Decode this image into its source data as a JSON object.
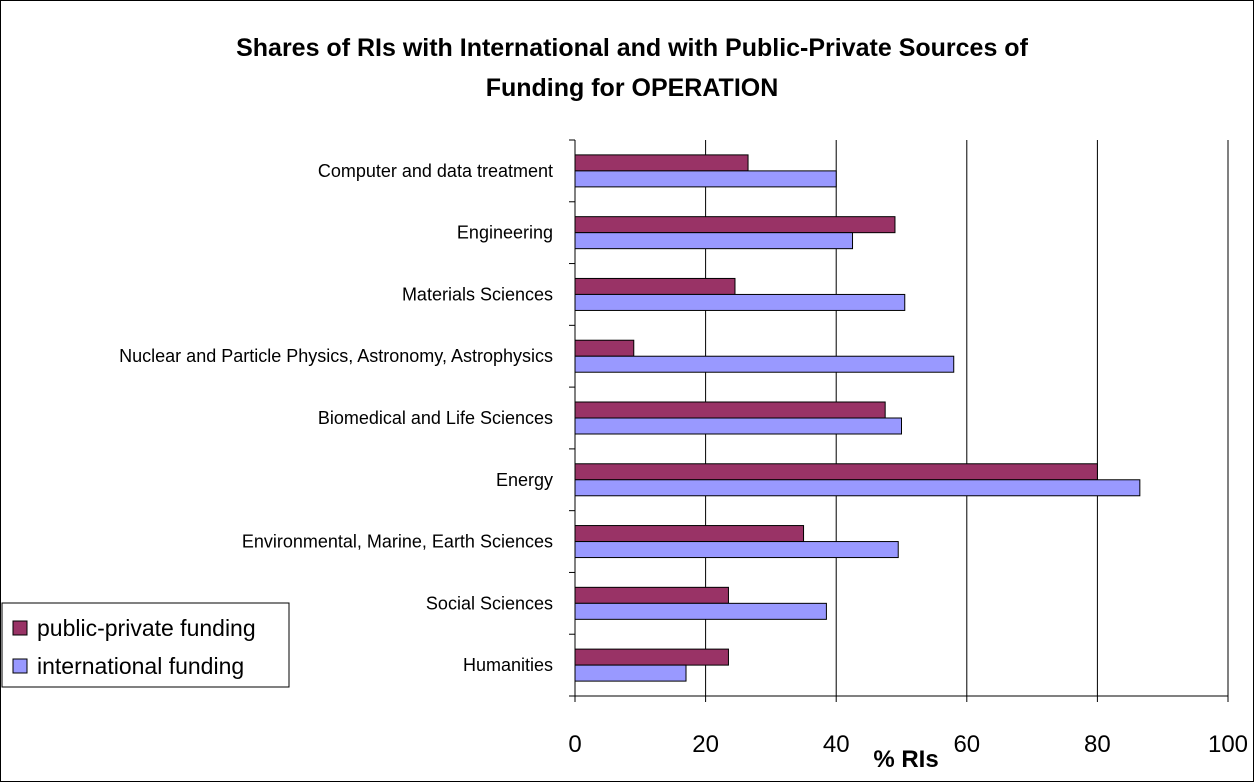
{
  "chart_data": {
    "type": "bar",
    "orientation": "horizontal",
    "title": "Shares of RIs with International and with Public-Private Sources of Funding for OPERATION",
    "title_lines": [
      "Shares of RIs with International and with Public-Private Sources of",
      "Funding for OPERATION"
    ],
    "xlabel": "% RIs",
    "ylabel": "",
    "xlim": [
      0,
      100
    ],
    "x_ticks": [
      0,
      20,
      40,
      60,
      80,
      100
    ],
    "grid": "vertical major gridlines",
    "legend_position": "left",
    "categories": [
      "Computer and data treatment",
      "Engineering",
      "Materials Sciences",
      "Nuclear and Particle Physics, Astronomy, Astrophysics",
      "Biomedical and Life Sciences",
      "Energy",
      "Environmental, Marine, Earth Sciences",
      "Social Sciences",
      "Humanities"
    ],
    "series": [
      {
        "name": "public-private funding",
        "color": "#993366",
        "values": [
          26.5,
          49,
          24.5,
          9,
          47.5,
          80,
          35,
          23.5,
          23.5
        ]
      },
      {
        "name": "international funding",
        "color": "#9999ff",
        "values": [
          40,
          42.5,
          50.5,
          58,
          50,
          86.5,
          49.5,
          38.5,
          17
        ]
      }
    ]
  }
}
